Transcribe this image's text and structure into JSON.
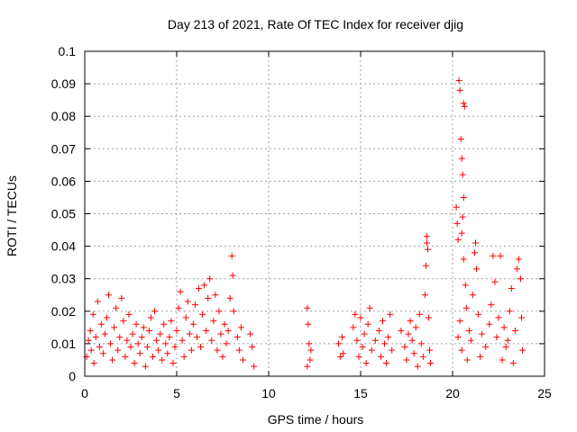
{
  "chart_data": {
    "type": "scatter",
    "title": "Day 213 of 2021, Rate Of TEC Index for receiver djig",
    "xlabel": "GPS time / hours",
    "ylabel": "ROTI / TECUs",
    "xlim": [
      0,
      25
    ],
    "ylim": [
      0,
      0.1
    ],
    "x_ticks": [
      0,
      5,
      10,
      15,
      20,
      25
    ],
    "x_tick_labels": [
      "0",
      "5",
      "10",
      "15",
      "20",
      "25"
    ],
    "y_ticks": [
      0,
      0.01,
      0.02,
      0.03,
      0.04,
      0.05,
      0.06,
      0.07,
      0.08,
      0.09,
      0.1
    ],
    "y_tick_labels": [
      "0",
      "0.01",
      "0.02",
      "0.03",
      "0.04",
      "0.05",
      "0.06",
      "0.07",
      "0.08",
      "0.09",
      "0.1"
    ],
    "grid": true,
    "marker": "+",
    "color": "#ff0000",
    "series": [
      {
        "name": "ROTI",
        "points": [
          [
            0.1,
            0.006
          ],
          [
            0.2,
            0.011
          ],
          [
            0.3,
            0.014
          ],
          [
            0.35,
            0.008
          ],
          [
            0.45,
            0.019
          ],
          [
            0.5,
            0.004
          ],
          [
            0.6,
            0.012
          ],
          [
            0.7,
            0.023
          ],
          [
            0.8,
            0.009
          ],
          [
            0.9,
            0.016
          ],
          [
            1.0,
            0.007
          ],
          [
            1.1,
            0.013
          ],
          [
            1.2,
            0.018
          ],
          [
            1.3,
            0.025
          ],
          [
            1.4,
            0.01
          ],
          [
            1.5,
            0.005
          ],
          [
            1.6,
            0.015
          ],
          [
            1.7,
            0.021
          ],
          [
            1.8,
            0.008
          ],
          [
            1.9,
            0.012
          ],
          [
            2.0,
            0.024
          ],
          [
            2.1,
            0.017
          ],
          [
            2.2,
            0.006
          ],
          [
            2.3,
            0.011
          ],
          [
            2.4,
            0.019
          ],
          [
            2.5,
            0.009
          ],
          [
            2.6,
            0.013
          ],
          [
            2.7,
            0.004
          ],
          [
            2.8,
            0.016
          ],
          [
            2.9,
            0.01
          ],
          [
            3.0,
            0.007
          ],
          [
            3.1,
            0.012
          ],
          [
            3.2,
            0.015
          ],
          [
            3.3,
            0.003
          ],
          [
            3.4,
            0.009
          ],
          [
            3.5,
            0.014
          ],
          [
            3.6,
            0.018
          ],
          [
            3.7,
            0.006
          ],
          [
            3.8,
            0.02
          ],
          [
            3.9,
            0.011
          ],
          [
            4.0,
            0.008
          ],
          [
            4.1,
            0.013
          ],
          [
            4.2,
            0.005
          ],
          [
            4.3,
            0.016
          ],
          [
            4.4,
            0.01
          ],
          [
            4.5,
            0.007
          ],
          [
            4.6,
            0.012
          ],
          [
            4.7,
            0.017
          ],
          [
            4.8,
            0.004
          ],
          [
            4.9,
            0.009
          ],
          [
            5.0,
            0.014
          ],
          [
            5.1,
            0.021
          ],
          [
            5.2,
            0.026
          ],
          [
            5.3,
            0.011
          ],
          [
            5.4,
            0.006
          ],
          [
            5.5,
            0.018
          ],
          [
            5.6,
            0.023
          ],
          [
            5.7,
            0.013
          ],
          [
            5.8,
            0.008
          ],
          [
            5.9,
            0.016
          ],
          [
            6.0,
            0.022
          ],
          [
            6.1,
            0.012
          ],
          [
            6.2,
            0.027
          ],
          [
            6.3,
            0.009
          ],
          [
            6.4,
            0.019
          ],
          [
            6.5,
            0.028
          ],
          [
            6.6,
            0.014
          ],
          [
            6.7,
            0.024
          ],
          [
            6.8,
            0.03
          ],
          [
            6.9,
            0.011
          ],
          [
            7.0,
            0.017
          ],
          [
            7.1,
            0.025
          ],
          [
            7.2,
            0.008
          ],
          [
            7.3,
            0.02
          ],
          [
            7.4,
            0.013
          ],
          [
            7.5,
            0.006
          ],
          [
            7.6,
            0.016
          ],
          [
            7.7,
            0.01
          ],
          [
            7.8,
            0.014
          ],
          [
            7.9,
            0.024
          ],
          [
            8.0,
            0.037
          ],
          [
            8.05,
            0.031
          ],
          [
            8.1,
            0.02
          ],
          [
            8.3,
            0.012
          ],
          [
            8.4,
            0.008
          ],
          [
            8.5,
            0.015
          ],
          [
            8.6,
            0.005
          ],
          [
            9.0,
            0.013
          ],
          [
            9.1,
            0.009
          ],
          [
            9.2,
            0.003
          ],
          [
            12.1,
            0.021
          ],
          [
            12.15,
            0.016
          ],
          [
            12.2,
            0.01
          ],
          [
            12.25,
            0.005
          ],
          [
            12.3,
            0.008
          ],
          [
            12.1,
            0.003
          ],
          [
            13.8,
            0.01
          ],
          [
            13.9,
            0.006
          ],
          [
            14.0,
            0.012
          ],
          [
            14.05,
            0.007
          ],
          [
            14.6,
            0.015
          ],
          [
            14.7,
            0.019
          ],
          [
            14.8,
            0.011
          ],
          [
            14.9,
            0.006
          ],
          [
            15.0,
            0.018
          ],
          [
            15.1,
            0.009
          ],
          [
            15.2,
            0.013
          ],
          [
            15.3,
            0.004
          ],
          [
            15.4,
            0.016
          ],
          [
            15.5,
            0.021
          ],
          [
            15.6,
            0.008
          ],
          [
            15.8,
            0.011
          ],
          [
            16.0,
            0.014
          ],
          [
            16.1,
            0.006
          ],
          [
            16.2,
            0.017
          ],
          [
            16.3,
            0.01
          ],
          [
            16.4,
            0.004
          ],
          [
            16.5,
            0.012
          ],
          [
            16.6,
            0.019
          ],
          [
            16.7,
            0.008
          ],
          [
            17.2,
            0.014
          ],
          [
            17.4,
            0.009
          ],
          [
            17.5,
            0.005
          ],
          [
            17.6,
            0.013
          ],
          [
            17.7,
            0.017
          ],
          [
            17.8,
            0.011
          ],
          [
            17.9,
            0.007
          ],
          [
            18.0,
            0.015
          ],
          [
            18.1,
            0.003
          ],
          [
            18.2,
            0.019
          ],
          [
            18.3,
            0.01
          ],
          [
            18.4,
            0.006
          ],
          [
            18.5,
            0.025
          ],
          [
            18.55,
            0.034
          ],
          [
            18.6,
            0.043
          ],
          [
            18.6,
            0.041
          ],
          [
            18.65,
            0.039
          ],
          [
            18.7,
            0.018
          ],
          [
            18.75,
            0.008
          ],
          [
            18.8,
            0.004
          ],
          [
            20.2,
            0.052
          ],
          [
            20.25,
            0.047
          ],
          [
            20.3,
            0.042
          ],
          [
            20.35,
            0.091
          ],
          [
            20.4,
            0.088
          ],
          [
            20.45,
            0.073
          ],
          [
            20.5,
            0.067
          ],
          [
            20.55,
            0.062
          ],
          [
            20.6,
            0.084
          ],
          [
            20.65,
            0.083
          ],
          [
            20.6,
            0.055
          ],
          [
            20.55,
            0.049
          ],
          [
            20.5,
            0.044
          ],
          [
            20.6,
            0.036
          ],
          [
            20.7,
            0.028
          ],
          [
            20.75,
            0.021
          ],
          [
            20.3,
            0.012
          ],
          [
            20.4,
            0.017
          ],
          [
            20.5,
            0.008
          ],
          [
            20.8,
            0.005
          ],
          [
            20.9,
            0.014
          ],
          [
            21.0,
            0.011
          ],
          [
            21.1,
            0.025
          ],
          [
            21.2,
            0.038
          ],
          [
            21.25,
            0.041
          ],
          [
            21.3,
            0.033
          ],
          [
            21.4,
            0.019
          ],
          [
            21.5,
            0.006
          ],
          [
            21.6,
            0.013
          ],
          [
            21.8,
            0.009
          ],
          [
            22.0,
            0.016
          ],
          [
            22.1,
            0.022
          ],
          [
            22.2,
            0.037
          ],
          [
            22.3,
            0.029
          ],
          [
            22.4,
            0.012
          ],
          [
            22.5,
            0.018
          ],
          [
            22.6,
            0.037
          ],
          [
            22.7,
            0.005
          ],
          [
            22.8,
            0.015
          ],
          [
            22.9,
            0.009
          ],
          [
            23.0,
            0.011
          ],
          [
            23.1,
            0.02
          ],
          [
            23.2,
            0.027
          ],
          [
            23.3,
            0.004
          ],
          [
            23.4,
            0.014
          ],
          [
            23.5,
            0.033
          ],
          [
            23.6,
            0.036
          ],
          [
            23.7,
            0.03
          ],
          [
            23.75,
            0.018
          ],
          [
            23.8,
            0.008
          ]
        ]
      }
    ]
  }
}
